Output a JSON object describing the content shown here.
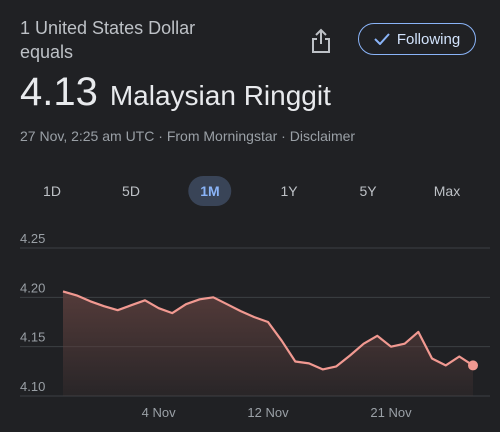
{
  "header": {
    "subhead_line1": "1 United States Dollar",
    "subhead_line2": "equals",
    "rate_value": "4.13",
    "rate_currency": "Malaysian Ringgit",
    "timestamp": "27 Nov, 2:25 am UTC",
    "separator": " · ",
    "source": "From Morningstar",
    "disclaimer": "Disclaimer",
    "share_icon": "share-icon",
    "follow_label": "Following",
    "follow_icon": "check-icon"
  },
  "tabs": [
    {
      "label": "1D",
      "active": false
    },
    {
      "label": "5D",
      "active": false
    },
    {
      "label": "1M",
      "active": true
    },
    {
      "label": "1Y",
      "active": false
    },
    {
      "label": "5Y",
      "active": false
    },
    {
      "label": "Max",
      "active": false
    }
  ],
  "colors": {
    "line": "#f19991",
    "fill_top": "#5a3e3c",
    "grid": "#3c4043",
    "axis_text": "#9aa0a6",
    "active_tab_bg": "#394457",
    "accent": "#8ab4f8"
  },
  "chart_data": {
    "type": "area",
    "title": "",
    "xlabel": "",
    "ylabel": "",
    "ylim": [
      4.1,
      4.25
    ],
    "y_ticks": [
      "4.25",
      "4.20",
      "4.15",
      "4.10"
    ],
    "y_tick_values": [
      4.25,
      4.2,
      4.15,
      4.1
    ],
    "x_tick_labels": [
      "4 Nov",
      "12 Nov",
      "21 Nov"
    ],
    "x_tick_dates": [
      "2024-11-04",
      "2024-11-12",
      "2024-11-21"
    ],
    "grid": true,
    "series": [
      {
        "x": [
          "2024-10-28",
          "2024-10-29",
          "2024-10-30",
          "2024-10-31",
          "2024-11-01",
          "2024-11-02",
          "2024-11-03",
          "2024-11-04",
          "2024-11-05",
          "2024-11-06",
          "2024-11-07",
          "2024-11-08",
          "2024-11-09",
          "2024-11-10",
          "2024-11-11",
          "2024-11-12",
          "2024-11-13",
          "2024-11-14",
          "2024-11-15",
          "2024-11-16",
          "2024-11-17",
          "2024-11-18",
          "2024-11-19",
          "2024-11-20",
          "2024-11-21",
          "2024-11-22",
          "2024-11-23",
          "2024-11-24",
          "2024-11-25",
          "2024-11-26",
          "2024-11-27"
        ],
        "values": [
          4.206,
          4.202,
          4.196,
          4.191,
          4.187,
          4.192,
          4.197,
          4.189,
          4.184,
          4.193,
          4.198,
          4.2,
          4.193,
          4.186,
          4.18,
          4.175,
          4.156,
          4.135,
          4.133,
          4.127,
          4.13,
          4.141,
          4.153,
          4.161,
          4.15,
          4.153,
          4.165,
          4.138,
          4.131,
          4.14,
          4.131
        ],
        "last_point_marker": true
      }
    ]
  }
}
